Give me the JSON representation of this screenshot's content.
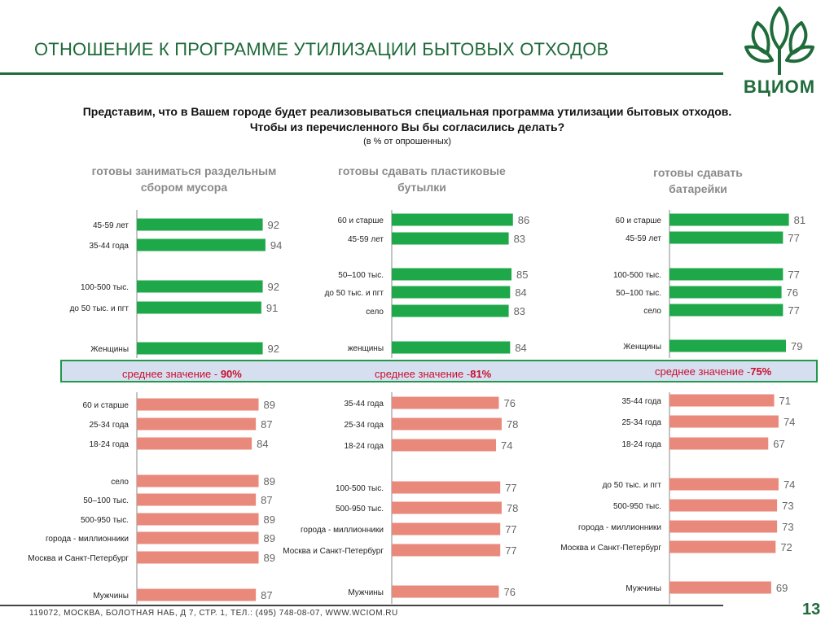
{
  "title": "ОТНОШЕНИЕ К ПРОГРАММЕ  УТИЛИЗАЦИИ БЫТОВЫХ ОТХОДОВ",
  "logo_text": "ВЦИОМ",
  "question": {
    "line1": "Представим, что  в Вашем городе будет реализовываться специальная программа  утилизации бытовых отходов.",
    "line2": "Чтобы из перечисленного Вы бы  согласились делать?",
    "note": "(в % от опрошенных)"
  },
  "panels": [
    {
      "title": "готовы заниматься раздельным сбором мусора",
      "mean_label": "среднее значение - ",
      "mean_value": "90%"
    },
    {
      "title": "готовы сдавать пластиковые бутылки",
      "mean_label": "среднее значение -",
      "mean_value": "81%"
    },
    {
      "title": "готовы сдавать батарейки",
      "mean_label": "среднее значение -",
      "mean_value": "75%"
    }
  ],
  "footer": "119072, МОСКВА, БОЛОТНАЯ НАБ, Д 7, СТР. 1, ТЕЛ.: (495) 748-08-07, WWW.WCIOM.RU",
  "page_number": "13",
  "colors": {
    "above": "#1fa84a",
    "below": "#e8897b",
    "brand": "#1f6b3a",
    "mean_text": "#c8102e",
    "band": "#d5dff0"
  },
  "chart_data": [
    {
      "type": "bar",
      "title": "готовы заниматься раздельным сбором мусора",
      "ylim": [
        0,
        100
      ],
      "groups": [
        {
          "name": "above",
          "categories": [
            "45-59 лет",
            "35-44 года",
            "100-500 тыс.",
            "до 50 тыс. и пгт",
            "Женщины"
          ],
          "values": [
            92,
            94,
            92,
            91,
            92
          ]
        },
        {
          "name": "below",
          "categories": [
            "60 и старше",
            "25-34 года",
            "18-24 года",
            "село",
            "50–100 тыс.",
            "500-950 тыс.",
            "города - миллионники",
            "Москва и Санкт-Петербург",
            "Мужчины"
          ],
          "values": [
            89,
            87,
            84,
            89,
            87,
            89,
            89,
            89,
            87
          ]
        }
      ]
    },
    {
      "type": "bar",
      "title": "готовы сдавать пластиковые бутылки",
      "ylim": [
        0,
        100
      ],
      "groups": [
        {
          "name": "above",
          "categories": [
            "60 и старше",
            "45-59 лет",
            "50–100 тыс.",
            "до 50 тыс. и пгт",
            "село",
            "женщины"
          ],
          "values": [
            86,
            83,
            85,
            84,
            83,
            84
          ]
        },
        {
          "name": "below",
          "categories": [
            "35-44 года",
            "25-34 года",
            "18-24 года",
            "100-500 тыс.",
            "500-950 тыс.",
            "города - миллионники",
            "Москва и Санкт-Петербург",
            "Мужчины"
          ],
          "values": [
            76,
            78,
            74,
            77,
            78,
            77,
            77,
            76
          ]
        }
      ]
    },
    {
      "type": "bar",
      "title": "готовы сдавать батарейки",
      "ylim": [
        0,
        100
      ],
      "groups": [
        {
          "name": "above",
          "categories": [
            "60 и старше",
            "45-59 лет",
            "100-500 тыс.",
            "50–100 тыс.",
            "село",
            "Женщины"
          ],
          "values": [
            81,
            77,
            77,
            76,
            77,
            79
          ]
        },
        {
          "name": "below",
          "categories": [
            "35-44 года",
            "25-34 года",
            "18-24 года",
            "до 50 тыс. и пгт",
            "500-950 тыс.",
            "города - миллионники",
            "Москва и Санкт-Петербург",
            "Мужчины"
          ],
          "values": [
            71,
            74,
            67,
            74,
            73,
            73,
            72,
            69
          ]
        }
      ]
    }
  ]
}
